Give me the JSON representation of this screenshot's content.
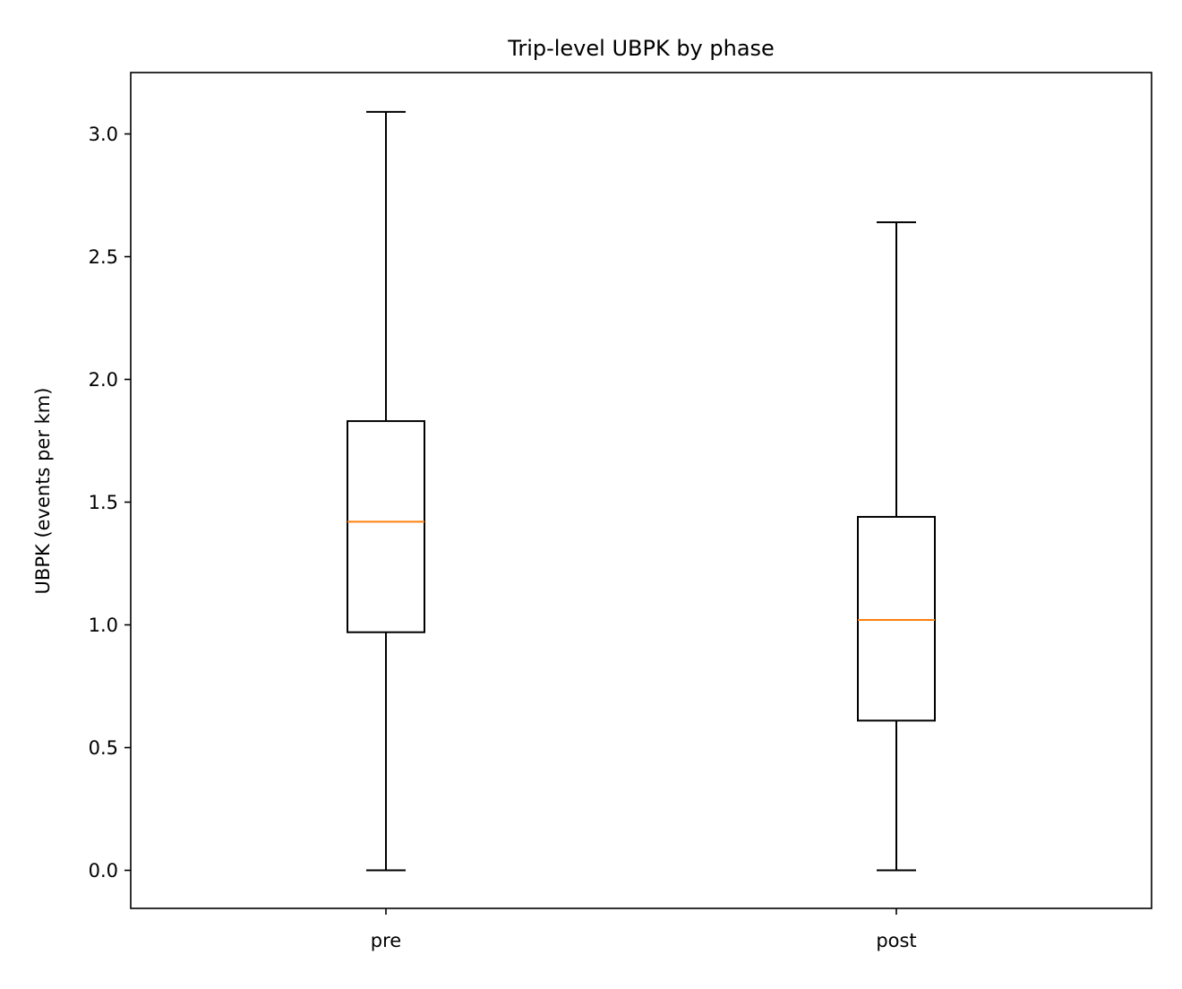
{
  "chart_data": {
    "type": "box",
    "title": "Trip-level UBPK by phase",
    "xlabel": "",
    "ylabel": "UBPK (events per km)",
    "categories": [
      "pre",
      "post"
    ],
    "boxes": [
      {
        "label": "pre",
        "whislo": 0.0,
        "q1": 0.97,
        "median": 1.42,
        "q3": 1.83,
        "whishi": 3.09
      },
      {
        "label": "post",
        "whislo": 0.0,
        "q1": 0.61,
        "median": 1.02,
        "q3": 1.44,
        "whishi": 2.64
      }
    ],
    "ylim": [
      -0.155,
      3.25
    ],
    "yticks": [
      0.0,
      0.5,
      1.0,
      1.5,
      2.0,
      2.5,
      3.0
    ],
    "ytick_labels": [
      "0.0",
      "0.5",
      "1.0",
      "1.5",
      "2.0",
      "2.5",
      "3.0"
    ],
    "grid": false,
    "colors": {
      "box": "#000000",
      "whisker": "#000000",
      "median": "#ff7f0e",
      "background": "#ffffff"
    }
  }
}
